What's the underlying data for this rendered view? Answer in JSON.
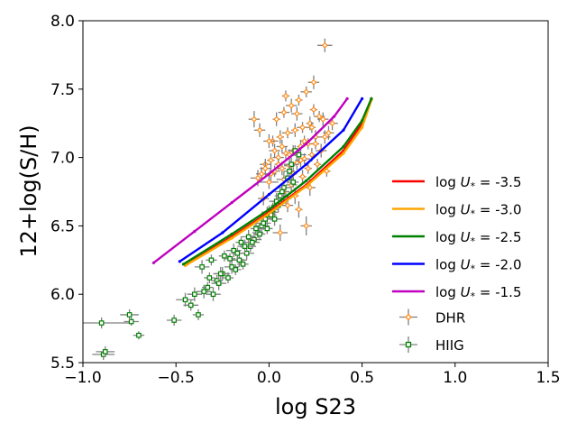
{
  "chart_data": {
    "type": "scatter",
    "xlabel": "log S23",
    "ylabel": "12+log(S/H)",
    "xlim": [
      -1.0,
      1.5
    ],
    "ylim": [
      5.5,
      8.0
    ],
    "xticks": [
      -1.0,
      -0.5,
      0.0,
      0.5,
      1.0,
      1.5
    ],
    "xtick_labels": [
      "−1.0",
      "−0.5",
      "0.0",
      "0.5",
      "1.0",
      "1.5"
    ],
    "yticks": [
      5.5,
      6.0,
      6.5,
      7.0,
      7.5,
      8.0
    ],
    "ytick_labels": [
      "5.5",
      "6.0",
      "6.5",
      "7.0",
      "7.5",
      "8.0"
    ],
    "legend_position": "right",
    "grid": false,
    "lines": [
      {
        "name": "log U_* = -3.5",
        "label_prefix": "log ",
        "label_var": "U",
        "label_sub": "*",
        "label_suffix": " = -3.5",
        "color": "#ff0000",
        "x": [
          -0.44,
          -0.2,
          0.0,
          0.2,
          0.4,
          0.5,
          0.55
        ],
        "y": [
          6.22,
          6.42,
          6.6,
          6.8,
          7.05,
          7.25,
          7.43
        ]
      },
      {
        "name": "log U_* = -3.0",
        "label_prefix": "log ",
        "label_var": "U",
        "label_sub": "*",
        "label_suffix": " = -3.0",
        "color": "#ffa500",
        "x": [
          -0.45,
          -0.2,
          0.0,
          0.2,
          0.4,
          0.5,
          0.55
        ],
        "y": [
          6.21,
          6.41,
          6.59,
          6.79,
          7.03,
          7.22,
          7.42
        ]
      },
      {
        "name": "log U_* = -2.5",
        "label_prefix": "log ",
        "label_var": "U",
        "label_sub": "*",
        "label_suffix": " = -2.5",
        "color": "#008000",
        "x": [
          -0.46,
          -0.2,
          0.0,
          0.2,
          0.4,
          0.5,
          0.55
        ],
        "y": [
          6.22,
          6.44,
          6.62,
          6.83,
          7.08,
          7.27,
          7.43
        ]
      },
      {
        "name": "log U_* = -2.0",
        "label_prefix": "log ",
        "label_var": "U",
        "label_sub": "*",
        "label_suffix": " = -2.0",
        "color": "#0000ff",
        "x": [
          -0.48,
          -0.25,
          0.0,
          0.2,
          0.4,
          0.5
        ],
        "y": [
          6.24,
          6.45,
          6.73,
          6.95,
          7.2,
          7.43
        ]
      },
      {
        "name": "log U_* = -1.5",
        "label_prefix": "log ",
        "label_var": "U",
        "label_sub": "*",
        "label_suffix": " = -1.5",
        "color": "#bf00bf",
        "x": [
          -0.62,
          -0.4,
          -0.2,
          0.0,
          0.2,
          0.35,
          0.42
        ],
        "y": [
          6.23,
          6.46,
          6.67,
          6.88,
          7.1,
          7.3,
          7.43
        ]
      }
    ],
    "scatter_series": [
      {
        "name": "DHR",
        "marker": "diamond",
        "color": "#ff8c1a",
        "errcolor": "#808080",
        "x": [
          0.3,
          0.24,
          0.2,
          0.16,
          0.12,
          0.08,
          0.04,
          0.27,
          0.22,
          0.18,
          0.14,
          0.1,
          0.06,
          0.02,
          0.25,
          0.21,
          0.17,
          0.13,
          0.09,
          0.05,
          0.01,
          -0.02,
          0.23,
          0.19,
          0.15,
          0.11,
          0.07,
          0.03,
          -0.04,
          0.26,
          0.28,
          0.31,
          0.34,
          -0.06,
          0.0,
          0.12,
          0.18,
          0.22,
          0.08,
          0.14,
          -0.03,
          0.04,
          0.1,
          0.16,
          0.2,
          0.06,
          0.02,
          -0.01,
          0.13,
          0.3,
          0.24,
          -0.08,
          -0.05,
          0.09,
          0.15,
          0.19,
          0.07,
          0.11,
          0.03,
          0.21,
          0.17,
          0.05,
          0.01,
          0.23,
          0.29,
          0.0,
          0.08,
          -0.02,
          0.25,
          0.32
        ],
        "y": [
          7.82,
          7.55,
          7.48,
          7.42,
          7.38,
          7.33,
          7.28,
          7.3,
          7.25,
          7.22,
          7.2,
          7.18,
          7.15,
          7.12,
          7.15,
          7.1,
          7.08,
          7.05,
          7.03,
          7.0,
          6.98,
          6.95,
          7.02,
          6.99,
          6.96,
          6.94,
          6.92,
          6.9,
          6.88,
          6.95,
          7.05,
          6.9,
          7.25,
          6.85,
          6.82,
          6.8,
          6.86,
          6.78,
          6.75,
          6.72,
          6.7,
          6.68,
          6.65,
          6.62,
          6.5,
          6.45,
          6.6,
          6.58,
          6.88,
          7.15,
          7.35,
          7.28,
          7.2,
          7.45,
          7.32,
          7.12,
          7.08,
          7.02,
          7.05,
          6.92,
          6.98,
          6.95,
          6.88,
          7.22,
          7.28,
          7.12,
          6.84,
          6.92,
          7.1,
          7.18
        ],
        "xerr": [
          0.04,
          0.03,
          0.03,
          0.02,
          0.03,
          0.03,
          0.02,
          0.03,
          0.02,
          0.03,
          0.02,
          0.03,
          0.02,
          0.03,
          0.02,
          0.03,
          0.02,
          0.03,
          0.02,
          0.03,
          0.02,
          0.03,
          0.02,
          0.03,
          0.02,
          0.03,
          0.02,
          0.03,
          0.03,
          0.02,
          0.03,
          0.02,
          0.03,
          0.04,
          0.05,
          0.03,
          0.02,
          0.03,
          0.03,
          0.02,
          0.03,
          0.03,
          0.03,
          0.02,
          0.03,
          0.04,
          0.03,
          0.03,
          0.02,
          0.03,
          0.02,
          0.03,
          0.03,
          0.02,
          0.03,
          0.02,
          0.03,
          0.02,
          0.03,
          0.02,
          0.03,
          0.02,
          0.03,
          0.02,
          0.03,
          0.03,
          0.04,
          0.03,
          0.02,
          0.03
        ],
        "yerr": [
          0.05,
          0.05,
          0.04,
          0.04,
          0.05,
          0.04,
          0.05,
          0.04,
          0.05,
          0.04,
          0.05,
          0.04,
          0.05,
          0.04,
          0.05,
          0.04,
          0.05,
          0.04,
          0.05,
          0.04,
          0.05,
          0.04,
          0.05,
          0.04,
          0.05,
          0.04,
          0.05,
          0.04,
          0.05,
          0.04,
          0.05,
          0.04,
          0.05,
          0.06,
          0.05,
          0.06,
          0.05,
          0.06,
          0.05,
          0.06,
          0.05,
          0.06,
          0.05,
          0.06,
          0.07,
          0.06,
          0.07,
          0.06,
          0.05,
          0.05,
          0.04,
          0.06,
          0.05,
          0.04,
          0.05,
          0.04,
          0.05,
          0.04,
          0.05,
          0.04,
          0.05,
          0.04,
          0.05,
          0.04,
          0.05,
          0.05,
          0.06,
          0.05,
          0.04,
          0.05
        ]
      },
      {
        "name": "HIIG",
        "marker": "square",
        "color": "#008000",
        "errcolor": "#808080",
        "x": [
          -0.9,
          -0.89,
          -0.88,
          -0.74,
          -0.75,
          -0.7,
          -0.51,
          -0.45,
          -0.42,
          -0.38,
          -0.35,
          -0.33,
          -0.3,
          -0.28,
          -0.25,
          -0.22,
          -0.2,
          -0.18,
          -0.16,
          -0.14,
          -0.12,
          -0.1,
          -0.08,
          -0.06,
          -0.04,
          -0.02,
          0.0,
          0.02,
          0.04,
          0.06,
          0.08,
          0.1,
          0.12,
          0.14,
          0.16,
          -0.24,
          -0.19,
          -0.15,
          -0.11,
          -0.07,
          -0.03,
          0.01,
          0.05,
          0.09,
          -0.27,
          -0.21,
          -0.13,
          -0.05,
          0.03,
          0.11,
          -0.36,
          -0.31,
          -0.26,
          -0.17,
          -0.09,
          -0.01,
          0.07,
          0.13,
          -0.4,
          -0.32
        ],
        "y": [
          5.79,
          5.56,
          5.58,
          5.8,
          5.85,
          5.7,
          5.81,
          5.96,
          5.92,
          5.85,
          6.02,
          6.05,
          6.0,
          6.1,
          6.15,
          6.12,
          6.2,
          6.18,
          6.25,
          6.22,
          6.3,
          6.35,
          6.4,
          6.45,
          6.5,
          6.55,
          6.6,
          6.62,
          6.68,
          6.72,
          6.78,
          6.85,
          6.95,
          7.05,
          7.02,
          6.28,
          6.32,
          6.38,
          6.42,
          6.48,
          6.52,
          6.58,
          6.65,
          6.7,
          6.08,
          6.26,
          6.35,
          6.44,
          6.55,
          6.9,
          6.2,
          6.25,
          6.15,
          6.3,
          6.38,
          6.48,
          6.75,
          6.82,
          6.0,
          6.12
        ],
        "xerr": [
          0.15,
          0.06,
          0.05,
          0.04,
          0.05,
          0.03,
          0.04,
          0.05,
          0.04,
          0.03,
          0.04,
          0.03,
          0.04,
          0.03,
          0.04,
          0.03,
          0.04,
          0.03,
          0.04,
          0.03,
          0.04,
          0.03,
          0.04,
          0.03,
          0.04,
          0.03,
          0.04,
          0.03,
          0.04,
          0.03,
          0.04,
          0.03,
          0.04,
          0.03,
          0.04,
          0.03,
          0.04,
          0.03,
          0.04,
          0.03,
          0.04,
          0.03,
          0.04,
          0.03,
          0.04,
          0.03,
          0.04,
          0.03,
          0.04,
          0.03,
          0.04,
          0.03,
          0.04,
          0.03,
          0.04,
          0.03,
          0.04,
          0.03,
          0.04,
          0.03
        ],
        "yerr": [
          0.04,
          0.04,
          0.04,
          0.03,
          0.04,
          0.03,
          0.04,
          0.05,
          0.04,
          0.04,
          0.05,
          0.04,
          0.05,
          0.04,
          0.05,
          0.04,
          0.05,
          0.04,
          0.05,
          0.04,
          0.05,
          0.04,
          0.05,
          0.04,
          0.05,
          0.04,
          0.05,
          0.04,
          0.05,
          0.04,
          0.05,
          0.04,
          0.05,
          0.04,
          0.05,
          0.04,
          0.05,
          0.04,
          0.05,
          0.04,
          0.05,
          0.04,
          0.05,
          0.04,
          0.05,
          0.04,
          0.05,
          0.04,
          0.05,
          0.04,
          0.05,
          0.04,
          0.05,
          0.04,
          0.05,
          0.04,
          0.05,
          0.04,
          0.05,
          0.04
        ]
      }
    ]
  }
}
